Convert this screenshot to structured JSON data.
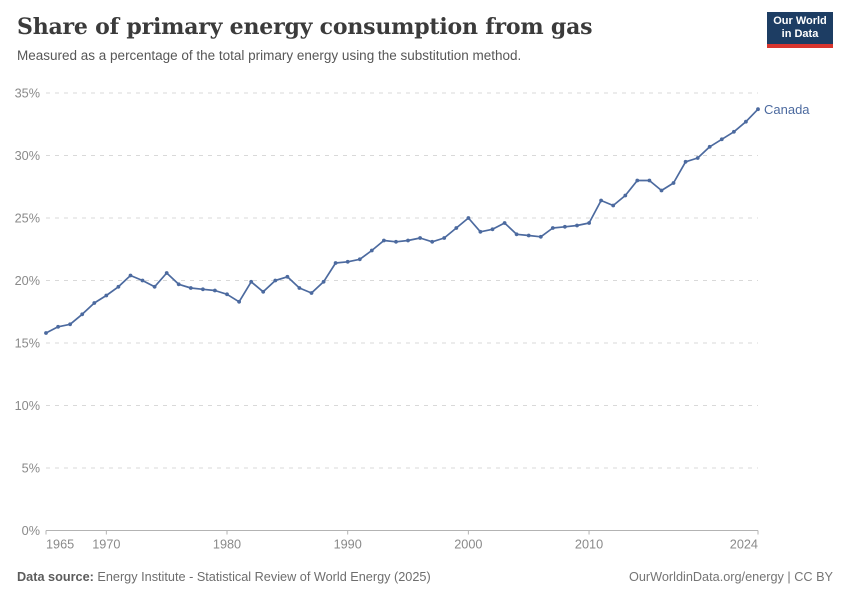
{
  "header": {
    "title": "Share of primary energy consumption from gas",
    "subtitle": "Measured as a percentage of the total primary energy using the substitution method.",
    "logo_line1": "Our World",
    "logo_line2": "in Data"
  },
  "chart_data": {
    "type": "line",
    "title": "Share of primary energy consumption from gas",
    "xlabel": "",
    "ylabel": "",
    "xlim": [
      1965,
      2024
    ],
    "ylim": [
      0,
      35
    ],
    "x_ticks": [
      1965,
      1970,
      1980,
      1990,
      2000,
      2010,
      2024
    ],
    "y_ticks": [
      0,
      5,
      10,
      15,
      20,
      25,
      30,
      35
    ],
    "y_tick_suffix": "%",
    "grid": "horizontal-dashed",
    "legend_position": "end-of-line",
    "series": [
      {
        "name": "Canada",
        "color": "#4c6a9f",
        "x": [
          1965,
          1966,
          1967,
          1968,
          1969,
          1970,
          1971,
          1972,
          1973,
          1974,
          1975,
          1976,
          1977,
          1978,
          1979,
          1980,
          1981,
          1982,
          1983,
          1984,
          1985,
          1986,
          1987,
          1988,
          1989,
          1990,
          1991,
          1992,
          1993,
          1994,
          1995,
          1996,
          1997,
          1998,
          1999,
          2000,
          2001,
          2002,
          2003,
          2004,
          2005,
          2006,
          2007,
          2008,
          2009,
          2010,
          2011,
          2012,
          2013,
          2014,
          2015,
          2016,
          2017,
          2018,
          2019,
          2020,
          2021,
          2022,
          2023,
          2024
        ],
        "values": [
          15.8,
          16.3,
          16.5,
          17.3,
          18.2,
          18.8,
          19.5,
          20.4,
          20.0,
          19.5,
          20.6,
          19.7,
          19.4,
          19.3,
          19.2,
          18.9,
          18.3,
          19.9,
          19.1,
          20.0,
          20.3,
          19.4,
          19.0,
          19.9,
          21.4,
          21.5,
          21.7,
          22.4,
          23.2,
          23.1,
          23.2,
          23.4,
          23.1,
          23.4,
          24.2,
          25.0,
          23.9,
          24.1,
          24.6,
          23.7,
          23.6,
          23.5,
          24.2,
          24.3,
          24.4,
          24.6,
          26.4,
          26.0,
          26.8,
          28.0,
          28.0,
          27.2,
          27.8,
          29.5,
          29.8,
          30.7,
          31.3,
          31.9,
          32.7,
          33.7
        ]
      }
    ]
  },
  "footer": {
    "source_label": "Data source:",
    "source_text": " Energy Institute - Statistical Review of World Energy (2025)",
    "rights": "OurWorldinData.org/energy | CC BY"
  },
  "colors": {
    "line": "#4c6a9f",
    "title_text": "#3b3b3b",
    "subtitle_text": "#575757",
    "tick_text": "#8a8a8a",
    "gridline": "#d9d9d9",
    "axis": "#b3b3b3",
    "footer_text": "#6e6e6e",
    "logo_bg": "#1d3d63",
    "logo_accent": "#d8352e"
  }
}
